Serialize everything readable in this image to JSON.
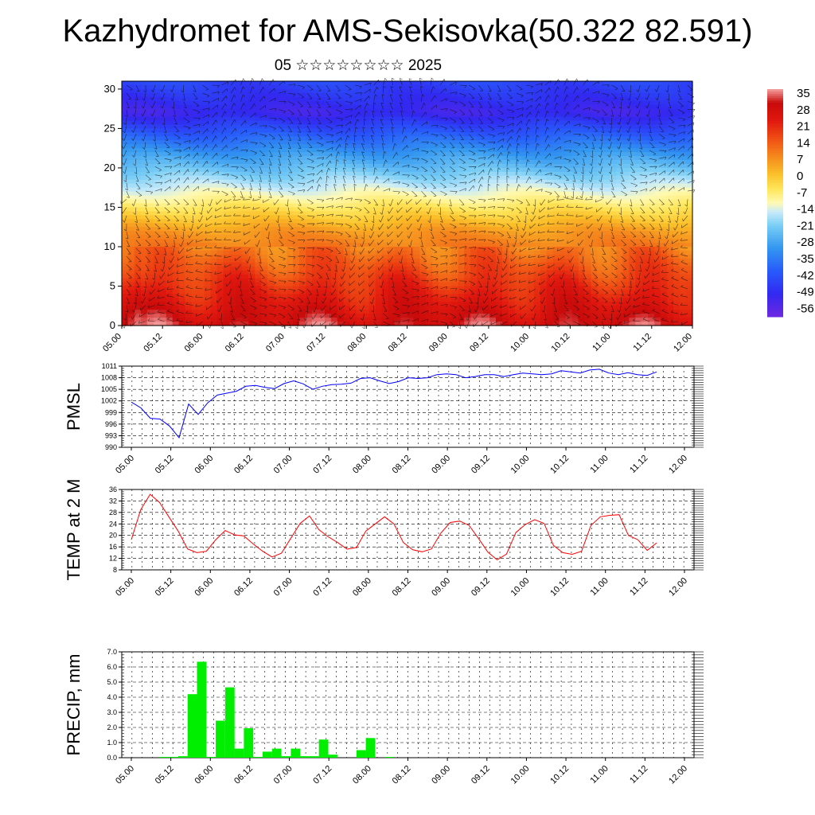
{
  "title": "Kazhydromet for AMS-Sekisovka(50.322 82.591)",
  "subtitle": "05 ☆☆☆☆☆☆☆☆ 2025",
  "chart_data": [
    {
      "type": "heatmap",
      "description_free": true,
      "x_ticks": [
        "05.00",
        "05.12",
        "06.00",
        "06.12",
        "07.00",
        "07.12",
        "08.00",
        "08.12",
        "09.00",
        "09.12",
        "10.00",
        "10.12",
        "11.00",
        "11.12",
        "12.00"
      ],
      "y_ticks": [
        0,
        5,
        10,
        15,
        20,
        25,
        30
      ],
      "ylim": [
        0,
        31
      ],
      "colorbar_ticks": [
        "35",
        "28",
        "21",
        "14",
        "7",
        "0",
        "-7",
        "-14",
        "-21",
        "-28",
        "-35",
        "-42",
        "-49",
        "-56"
      ],
      "zlim": [
        -60,
        40
      ],
      "wind_barbs": true
    },
    {
      "type": "line",
      "ylabel": "PMSL",
      "ylim": [
        990,
        1011
      ],
      "y_ticks": [
        990,
        993,
        996,
        999,
        1002,
        1005,
        1008,
        1011
      ],
      "x_ticks": [
        "05.00",
        "05.12",
        "06.00",
        "06.12",
        "07.00",
        "07.12",
        "08.00",
        "08.12",
        "09.00",
        "09.12",
        "10.00",
        "10.12",
        "11.00",
        "11.12",
        "12.00"
      ],
      "grid": true,
      "series": [
        {
          "color": "#0000ff",
          "values": [
            1001.7,
            1000.2,
            997.5,
            997.3,
            995.5,
            992.5,
            1001.2,
            998.5,
            1001.5,
            1003.5,
            1004,
            1004.5,
            1005.8,
            1006,
            1005.5,
            1005.2,
            1006.5,
            1007.2,
            1006.4,
            1005.0,
            1005.8,
            1006.2,
            1006.3,
            1006.6,
            1007.8,
            1008.0,
            1007.2,
            1006.5,
            1007.0,
            1008.0,
            1007.8,
            1008.0,
            1008.8,
            1009.0,
            1008.8,
            1008.0,
            1008.3,
            1008.8,
            1008.8,
            1008.3,
            1008.8,
            1009.2,
            1009.0,
            1008.8,
            1009.0,
            1009.8,
            1009.5,
            1009.2,
            1010.0,
            1010.2,
            1009.2,
            1008.8,
            1009.3,
            1008.8,
            1008.6,
            1009.5
          ]
        }
      ]
    },
    {
      "type": "line",
      "ylabel": "TEMP at 2 M",
      "ylim": [
        8,
        36
      ],
      "y_ticks": [
        8,
        12,
        16,
        20,
        24,
        28,
        32,
        36
      ],
      "x_ticks": [
        "05.00",
        "05.12",
        "06.00",
        "06.12",
        "07.00",
        "07.12",
        "08.00",
        "08.12",
        "09.00",
        "09.12",
        "10.00",
        "10.12",
        "11.00",
        "11.12",
        "12.00"
      ],
      "grid": true,
      "series": [
        {
          "color": "#ff0000",
          "values": [
            18.5,
            29,
            34.3,
            31.5,
            26.5,
            21.5,
            15.3,
            14.0,
            14.5,
            18.5,
            21.7,
            20.2,
            19.8,
            17.0,
            14.5,
            12.5,
            13.8,
            19.0,
            24.2,
            26.8,
            22.0,
            19.5,
            17.5,
            15.2,
            15.8,
            21.5,
            24.0,
            26.5,
            24.0,
            17.5,
            15.0,
            14.3,
            15.3,
            20.8,
            24.5,
            25.0,
            23.5,
            19.0,
            14.2,
            11.5,
            13.5,
            21.0,
            23.8,
            25.5,
            24.2,
            16.5,
            14.0,
            13.4,
            14.5,
            23.5,
            26.5,
            27.0,
            27.2,
            20.0,
            18.5,
            14.8,
            17.4
          ]
        }
      ]
    },
    {
      "type": "bar",
      "ylabel": "PRECIP, mm",
      "ylim": [
        0,
        7
      ],
      "y_ticks": [
        "0.0",
        "1.0",
        "2.0",
        "3.0",
        "4.0",
        "5.0",
        "6.0",
        "7.0"
      ],
      "x_ticks": [
        "05.00",
        "05.12",
        "06.00",
        "06.12",
        "07.00",
        "07.12",
        "08.00",
        "08.12",
        "09.00",
        "09.12",
        "10.00",
        "10.12",
        "11.00",
        "11.12",
        "12.00"
      ],
      "grid": true,
      "series": [
        {
          "color": "#00ee00",
          "values": [
            0,
            0,
            0,
            0.05,
            0.05,
            0.1,
            4.2,
            6.35,
            0.05,
            2.45,
            4.65,
            0.6,
            1.95,
            0.05,
            0.4,
            0.6,
            0.1,
            0.6,
            0.1,
            0.1,
            1.2,
            0.2,
            0,
            0,
            0.5,
            1.3,
            0,
            0.05,
            0,
            0,
            0,
            0,
            0,
            0,
            0,
            0,
            0,
            0,
            0,
            0,
            0,
            0,
            0,
            0,
            0,
            0,
            0,
            0,
            0,
            0,
            0,
            0,
            0,
            0,
            0,
            0,
            0
          ]
        }
      ]
    }
  ]
}
